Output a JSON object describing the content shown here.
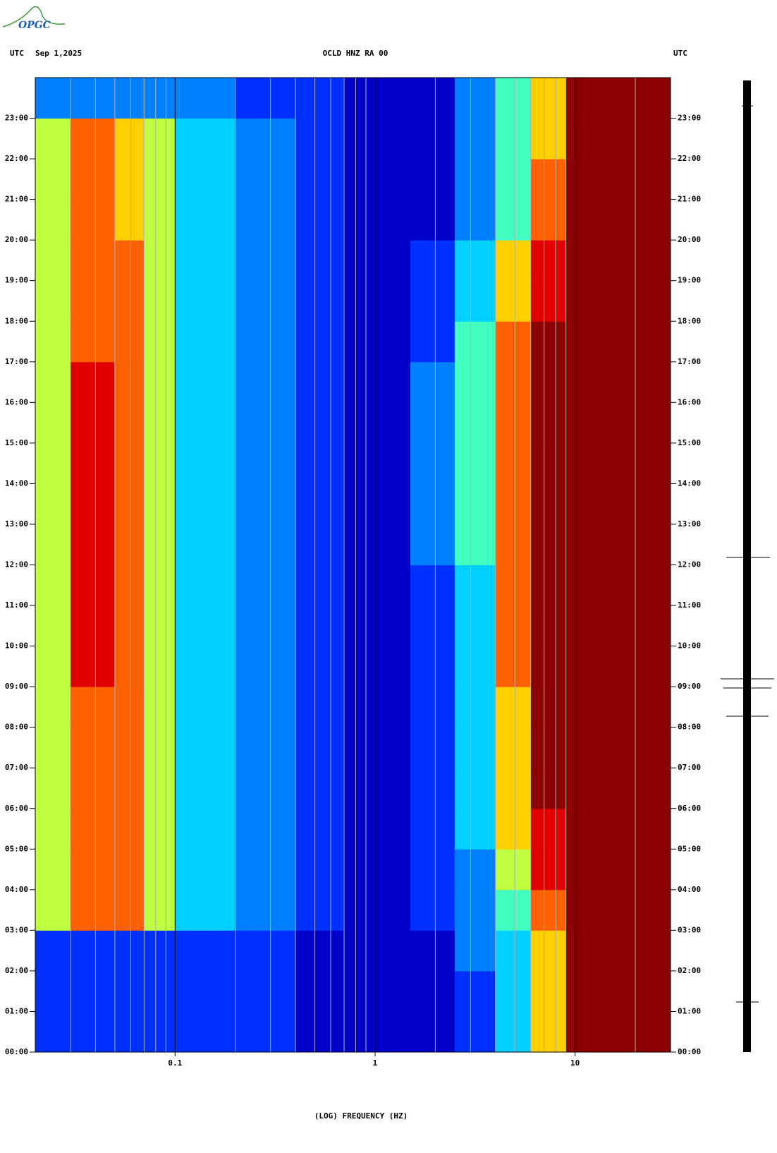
{
  "chart_data": {
    "type": "spectrogram",
    "logo": "OPGC",
    "timezone_left": "UTC",
    "date": "Sep 1,2025",
    "title": "OCLD HNZ RA 00",
    "timezone_right": "UTC",
    "x_label": "(LOG) FREQUENCY (HZ)",
    "xlog": true,
    "xlim": [
      0.02,
      30
    ],
    "xticks": [
      0.1,
      1,
      10
    ],
    "xgrid": [
      0.03,
      0.04,
      0.05,
      0.06,
      0.07,
      0.08,
      0.09,
      0.2,
      0.3,
      0.4,
      0.5,
      0.6,
      0.7,
      0.8,
      0.9,
      2,
      3,
      4,
      5,
      6,
      7,
      8,
      9,
      20
    ],
    "ylim": [
      0,
      24
    ],
    "yticks": [
      {
        "value": 0,
        "label": "00:00"
      },
      {
        "value": 1,
        "label": "01:00"
      },
      {
        "value": 2,
        "label": "02:00"
      },
      {
        "value": 3,
        "label": "03:00"
      },
      {
        "value": 4,
        "label": "04:00"
      },
      {
        "value": 5,
        "label": "05:00"
      },
      {
        "value": 6,
        "label": "06:00"
      },
      {
        "value": 7,
        "label": "07:00"
      },
      {
        "value": 8,
        "label": "08:00"
      },
      {
        "value": 9,
        "label": "09:00"
      },
      {
        "value": 10,
        "label": "10:00"
      },
      {
        "value": 11,
        "label": "11:00"
      },
      {
        "value": 12,
        "label": "12:00"
      },
      {
        "value": 13,
        "label": "13:00"
      },
      {
        "value": 14,
        "label": "14:00"
      },
      {
        "value": 15,
        "label": "15:00"
      },
      {
        "value": 16,
        "label": "16:00"
      },
      {
        "value": 17,
        "label": "17:00"
      },
      {
        "value": 18,
        "label": "18:00"
      },
      {
        "value": 19,
        "label": "19:00"
      },
      {
        "value": 20,
        "label": "20:00"
      },
      {
        "value": 21,
        "label": "21:00"
      },
      {
        "value": 22,
        "label": "22:00"
      },
      {
        "value": 23,
        "label": "23:00"
      }
    ],
    "freq_edges": [
      0.02,
      0.03,
      0.05,
      0.07,
      0.1,
      0.2,
      0.4,
      0.7,
      1.5,
      2.5,
      4,
      6,
      9,
      30
    ],
    "colormap": [
      "#00007f",
      "#0000c8",
      "#0030ff",
      "#0080ff",
      "#00d0ff",
      "#40ffc0",
      "#c0ff40",
      "#ffd000",
      "#ff6000",
      "#e00000",
      "#8b0000"
    ],
    "z": [
      [
        2,
        2,
        2,
        2,
        2,
        2,
        1,
        1,
        1,
        2,
        4,
        7,
        10
      ],
      [
        2,
        2,
        2,
        2,
        2,
        2,
        1,
        1,
        1,
        2,
        4,
        7,
        10
      ],
      [
        2,
        2,
        2,
        2,
        2,
        2,
        1,
        1,
        1,
        3,
        4,
        7,
        10
      ],
      [
        6,
        8,
        8,
        6,
        4,
        3,
        2,
        1,
        2,
        3,
        5,
        8,
        10
      ],
      [
        6,
        8,
        8,
        6,
        4,
        3,
        2,
        1,
        2,
        3,
        6,
        9,
        10
      ],
      [
        6,
        8,
        8,
        6,
        4,
        3,
        2,
        1,
        2,
        4,
        7,
        9,
        10
      ],
      [
        6,
        8,
        8,
        6,
        4,
        3,
        2,
        1,
        2,
        4,
        7,
        10,
        10
      ],
      [
        6,
        8,
        8,
        6,
        4,
        3,
        2,
        1,
        2,
        4,
        7,
        10,
        10
      ],
      [
        6,
        8,
        8,
        6,
        4,
        3,
        2,
        1,
        2,
        4,
        7,
        10,
        10
      ],
      [
        6,
        9,
        8,
        6,
        4,
        3,
        2,
        1,
        2,
        4,
        8,
        10,
        10
      ],
      [
        6,
        9,
        8,
        6,
        4,
        3,
        2,
        1,
        2,
        4,
        8,
        10,
        10
      ],
      [
        6,
        9,
        8,
        6,
        4,
        3,
        2,
        1,
        2,
        4,
        8,
        10,
        10
      ],
      [
        6,
        9,
        8,
        6,
        4,
        3,
        2,
        1,
        3,
        5,
        8,
        10,
        10
      ],
      [
        6,
        9,
        8,
        6,
        4,
        3,
        2,
        1,
        3,
        5,
        8,
        10,
        10
      ],
      [
        6,
        9,
        8,
        6,
        4,
        3,
        2,
        1,
        3,
        5,
        8,
        10,
        10
      ],
      [
        6,
        9,
        8,
        6,
        4,
        3,
        2,
        1,
        3,
        5,
        8,
        10,
        10
      ],
      [
        6,
        9,
        8,
        6,
        4,
        3,
        2,
        1,
        3,
        5,
        8,
        10,
        10
      ],
      [
        6,
        8,
        8,
        6,
        4,
        3,
        2,
        1,
        2,
        5,
        8,
        10,
        10
      ],
      [
        6,
        8,
        8,
        6,
        4,
        3,
        2,
        1,
        2,
        4,
        7,
        9,
        10
      ],
      [
        6,
        8,
        8,
        6,
        4,
        3,
        2,
        1,
        2,
        4,
        7,
        9,
        10
      ],
      [
        6,
        8,
        7,
        6,
        4,
        3,
        2,
        1,
        1,
        3,
        5,
        8,
        10
      ],
      [
        6,
        8,
        7,
        6,
        4,
        3,
        2,
        1,
        1,
        3,
        5,
        8,
        10
      ],
      [
        6,
        8,
        7,
        6,
        4,
        3,
        2,
        1,
        1,
        3,
        5,
        7,
        10
      ],
      [
        3,
        3,
        3,
        3,
        3,
        2,
        2,
        1,
        1,
        3,
        5,
        7,
        10
      ]
    ]
  }
}
